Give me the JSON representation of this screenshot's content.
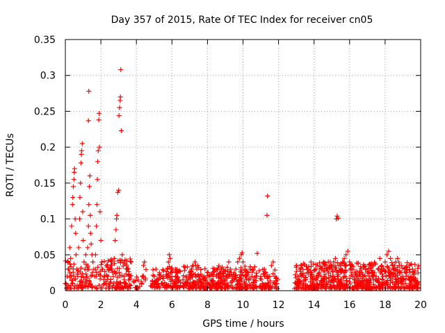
{
  "chart_data": {
    "type": "scatter",
    "title": "Day 357 of 2015, Rate Of TEC Index for receiver cn05",
    "xlabel": "GPS time / hours",
    "ylabel": "ROTI / TECUs",
    "xlim": [
      0,
      20
    ],
    "ylim": [
      0,
      0.35
    ],
    "x_ticks": [
      0,
      2,
      4,
      6,
      8,
      10,
      12,
      14,
      16,
      18,
      20
    ],
    "y_ticks": [
      0,
      0.05,
      0.1,
      0.15,
      0.2,
      0.25,
      0.3,
      0.35
    ],
    "x_tick_labels": [
      "0",
      "2",
      "4",
      "6",
      "8",
      "10",
      "12",
      "14",
      "16",
      "18",
      "20"
    ],
    "y_tick_labels": [
      "0",
      "0.05",
      "0.1",
      "0.15",
      "0.2",
      "0.25",
      "0.3",
      "0.35"
    ],
    "grid": true,
    "marker": "+",
    "series": [
      {
        "name": "ROTI",
        "color": "#ff0000",
        "points": [
          [
            0.0,
            0.01
          ],
          [
            0.1,
            0.02
          ],
          [
            0.15,
            0.04
          ],
          [
            0.2,
            0.03
          ],
          [
            0.25,
            0.06
          ],
          [
            0.3,
            0.045
          ],
          [
            0.35,
            0.09
          ],
          [
            0.4,
            0.12
          ],
          [
            0.42,
            0.13
          ],
          [
            0.45,
            0.145
          ],
          [
            0.48,
            0.155
          ],
          [
            0.5,
            0.165
          ],
          [
            0.52,
            0.17
          ],
          [
            0.55,
            0.1
          ],
          [
            0.58,
            0.08
          ],
          [
            0.6,
            0.05
          ],
          [
            0.65,
            0.03
          ],
          [
            0.7,
            0.02
          ],
          [
            0.75,
            0.06
          ],
          [
            0.8,
            0.1
          ],
          [
            0.82,
            0.13
          ],
          [
            0.85,
            0.15
          ],
          [
            0.88,
            0.178
          ],
          [
            0.9,
            0.19
          ],
          [
            0.92,
            0.195
          ],
          [
            0.95,
            0.205
          ],
          [
            0.98,
            0.11
          ],
          [
            1.0,
            0.07
          ],
          [
            1.05,
            0.04
          ],
          [
            1.1,
            0.03
          ],
          [
            1.15,
            0.05
          ],
          [
            1.2,
            0.02
          ],
          [
            1.25,
            0.06
          ],
          [
            1.3,
            0.09
          ],
          [
            1.32,
            0.12
          ],
          [
            1.35,
            0.145
          ],
          [
            1.38,
            0.16
          ],
          [
            1.3,
            0.237
          ],
          [
            1.32,
            0.278
          ],
          [
            1.4,
            0.105
          ],
          [
            1.42,
            0.08
          ],
          [
            1.45,
            0.065
          ],
          [
            1.5,
            0.05
          ],
          [
            1.55,
            0.04
          ],
          [
            1.6,
            0.03
          ],
          [
            1.65,
            0.02
          ],
          [
            1.7,
            0.05
          ],
          [
            1.75,
            0.09
          ],
          [
            1.78,
            0.12
          ],
          [
            1.8,
            0.155
          ],
          [
            1.82,
            0.18
          ],
          [
            1.85,
            0.195
          ],
          [
            1.88,
            0.238
          ],
          [
            1.9,
            0.247
          ],
          [
            1.92,
            0.2
          ],
          [
            1.95,
            0.11
          ],
          [
            2.0,
            0.07
          ],
          [
            2.05,
            0.04
          ],
          [
            2.1,
            0.03
          ],
          [
            2.2,
            0.02
          ],
          [
            2.3,
            0.01
          ],
          [
            2.4,
            0.02
          ],
          [
            2.5,
            0.01
          ],
          [
            2.6,
            0.03
          ],
          [
            2.7,
            0.02
          ],
          [
            2.75,
            0.045
          ],
          [
            2.8,
            0.07
          ],
          [
            2.85,
            0.085
          ],
          [
            2.88,
            0.1
          ],
          [
            2.9,
            0.105
          ],
          [
            2.95,
            0.137
          ],
          [
            3.0,
            0.14
          ],
          [
            3.02,
            0.244
          ],
          [
            3.05,
            0.255
          ],
          [
            3.08,
            0.265
          ],
          [
            3.1,
            0.27
          ],
          [
            3.12,
            0.308
          ],
          [
            3.15,
            0.223
          ],
          [
            3.2,
            0.05
          ],
          [
            3.3,
            0.02
          ],
          [
            3.4,
            0.01
          ],
          [
            3.5,
            0.03
          ],
          [
            3.6,
            0.02
          ],
          [
            3.7,
            0.04
          ],
          [
            4.3,
            0.01
          ],
          [
            4.35,
            0.02
          ],
          [
            4.4,
            0.035
          ],
          [
            4.45,
            0.04
          ],
          [
            4.5,
            0.015
          ],
          [
            4.9,
            0.01
          ],
          [
            5.0,
            0.02
          ],
          [
            5.1,
            0.03
          ],
          [
            5.2,
            0.015
          ],
          [
            5.3,
            0.025
          ],
          [
            5.4,
            0.01
          ],
          [
            5.5,
            0.02
          ],
          [
            5.7,
            0.02
          ],
          [
            5.75,
            0.03
          ],
          [
            5.8,
            0.04
          ],
          [
            5.85,
            0.05
          ],
          [
            5.9,
            0.045
          ],
          [
            5.95,
            0.03
          ],
          [
            6.0,
            0.02
          ],
          [
            6.1,
            0.01
          ],
          [
            6.2,
            0.03
          ],
          [
            6.3,
            0.025
          ],
          [
            6.4,
            0.015
          ],
          [
            6.7,
            0.01
          ],
          [
            6.8,
            0.02
          ],
          [
            6.9,
            0.015
          ],
          [
            7.0,
            0.02
          ],
          [
            7.1,
            0.03
          ],
          [
            7.2,
            0.035
          ],
          [
            7.3,
            0.04
          ],
          [
            7.4,
            0.03
          ],
          [
            7.5,
            0.02
          ],
          [
            7.6,
            0.015
          ],
          [
            7.7,
            0.01
          ],
          [
            7.8,
            0.02
          ],
          [
            7.9,
            0.015
          ],
          [
            8.0,
            0.01
          ],
          [
            8.1,
            0.02
          ],
          [
            8.2,
            0.015
          ],
          [
            8.3,
            0.02
          ],
          [
            8.4,
            0.03
          ],
          [
            8.5,
            0.02
          ],
          [
            8.6,
            0.01
          ],
          [
            8.7,
            0.025
          ],
          [
            8.8,
            0.02
          ],
          [
            8.9,
            0.03
          ],
          [
            9.0,
            0.015
          ],
          [
            9.1,
            0.02
          ],
          [
            9.2,
            0.04
          ],
          [
            9.3,
            0.03
          ],
          [
            9.4,
            0.02
          ],
          [
            9.5,
            0.025
          ],
          [
            9.6,
            0.03
          ],
          [
            9.7,
            0.04
          ],
          [
            9.8,
            0.045
          ],
          [
            9.9,
            0.05
          ],
          [
            9.95,
            0.053
          ],
          [
            10.0,
            0.04
          ],
          [
            10.1,
            0.03
          ],
          [
            10.2,
            0.02
          ],
          [
            10.3,
            0.025
          ],
          [
            10.4,
            0.03
          ],
          [
            10.5,
            0.02
          ],
          [
            10.6,
            0.015
          ],
          [
            10.8,
            0.052
          ],
          [
            11.0,
            0.02
          ],
          [
            11.1,
            0.01
          ],
          [
            11.2,
            0.03
          ],
          [
            11.3,
            0.02
          ],
          [
            11.35,
            0.105
          ],
          [
            11.38,
            0.132
          ],
          [
            11.4,
            0.01
          ],
          [
            11.5,
            0.02
          ],
          [
            11.6,
            0.035
          ],
          [
            11.7,
            0.04
          ],
          [
            11.8,
            0.02
          ],
          [
            11.9,
            0.01
          ],
          [
            13.0,
            0.01
          ],
          [
            13.1,
            0.02
          ],
          [
            13.2,
            0.03
          ],
          [
            13.3,
            0.02
          ],
          [
            13.4,
            0.01
          ],
          [
            13.5,
            0.015
          ],
          [
            13.6,
            0.025
          ],
          [
            13.7,
            0.03
          ],
          [
            13.8,
            0.02
          ],
          [
            13.9,
            0.01
          ],
          [
            14.0,
            0.02
          ],
          [
            14.1,
            0.03
          ],
          [
            14.2,
            0.035
          ],
          [
            14.3,
            0.025
          ],
          [
            14.4,
            0.02
          ],
          [
            14.5,
            0.015
          ],
          [
            14.6,
            0.02
          ],
          [
            14.7,
            0.03
          ],
          [
            14.8,
            0.04
          ],
          [
            14.9,
            0.035
          ],
          [
            15.0,
            0.03
          ],
          [
            15.1,
            0.04
          ],
          [
            15.2,
            0.045
          ],
          [
            15.25,
            0.1
          ],
          [
            15.3,
            0.104
          ],
          [
            15.35,
            0.101
          ],
          [
            15.4,
            0.035
          ],
          [
            15.5,
            0.03
          ],
          [
            15.6,
            0.04
          ],
          [
            15.7,
            0.045
          ],
          [
            15.8,
            0.05
          ],
          [
            15.9,
            0.055
          ],
          [
            16.0,
            0.04
          ],
          [
            16.1,
            0.035
          ],
          [
            16.2,
            0.03
          ],
          [
            16.3,
            0.025
          ],
          [
            16.4,
            0.02
          ],
          [
            16.5,
            0.015
          ],
          [
            16.6,
            0.02
          ],
          [
            16.7,
            0.025
          ],
          [
            16.8,
            0.02
          ],
          [
            16.9,
            0.03
          ],
          [
            17.0,
            0.025
          ],
          [
            17.1,
            0.02
          ],
          [
            17.2,
            0.015
          ],
          [
            17.3,
            0.02
          ],
          [
            17.4,
            0.025
          ],
          [
            17.5,
            0.02
          ],
          [
            17.6,
            0.03
          ],
          [
            17.7,
            0.045
          ],
          [
            17.8,
            0.035
          ],
          [
            17.9,
            0.03
          ],
          [
            18.0,
            0.04
          ],
          [
            18.1,
            0.05
          ],
          [
            18.2,
            0.055
          ],
          [
            18.3,
            0.045
          ],
          [
            18.4,
            0.035
          ],
          [
            18.5,
            0.03
          ],
          [
            18.6,
            0.04
          ],
          [
            18.7,
            0.045
          ],
          [
            18.8,
            0.035
          ],
          [
            18.9,
            0.025
          ],
          [
            19.0,
            0.02
          ],
          [
            19.1,
            0.03
          ],
          [
            19.2,
            0.025
          ],
          [
            19.3,
            0.02
          ],
          [
            19.4,
            0.015
          ],
          [
            19.5,
            0.02
          ],
          [
            19.6,
            0.025
          ],
          [
            19.7,
            0.015
          ],
          [
            19.8,
            0.01
          ]
        ],
        "bands": [
          {
            "start": 0.0,
            "end": 3.7,
            "low": 0.003,
            "high": 0.045,
            "count": 200
          },
          {
            "start": 3.8,
            "end": 4.55,
            "low": 0.003,
            "high": 0.03,
            "count": 20
          },
          {
            "start": 4.8,
            "end": 5.6,
            "low": 0.004,
            "high": 0.03,
            "count": 40
          },
          {
            "start": 5.65,
            "end": 6.5,
            "low": 0.004,
            "high": 0.035,
            "count": 60
          },
          {
            "start": 6.6,
            "end": 10.8,
            "low": 0.003,
            "high": 0.035,
            "count": 320
          },
          {
            "start": 10.9,
            "end": 11.95,
            "low": 0.003,
            "high": 0.03,
            "count": 60
          },
          {
            "start": 12.9,
            "end": 19.9,
            "low": 0.003,
            "high": 0.04,
            "count": 620
          }
        ]
      }
    ]
  }
}
